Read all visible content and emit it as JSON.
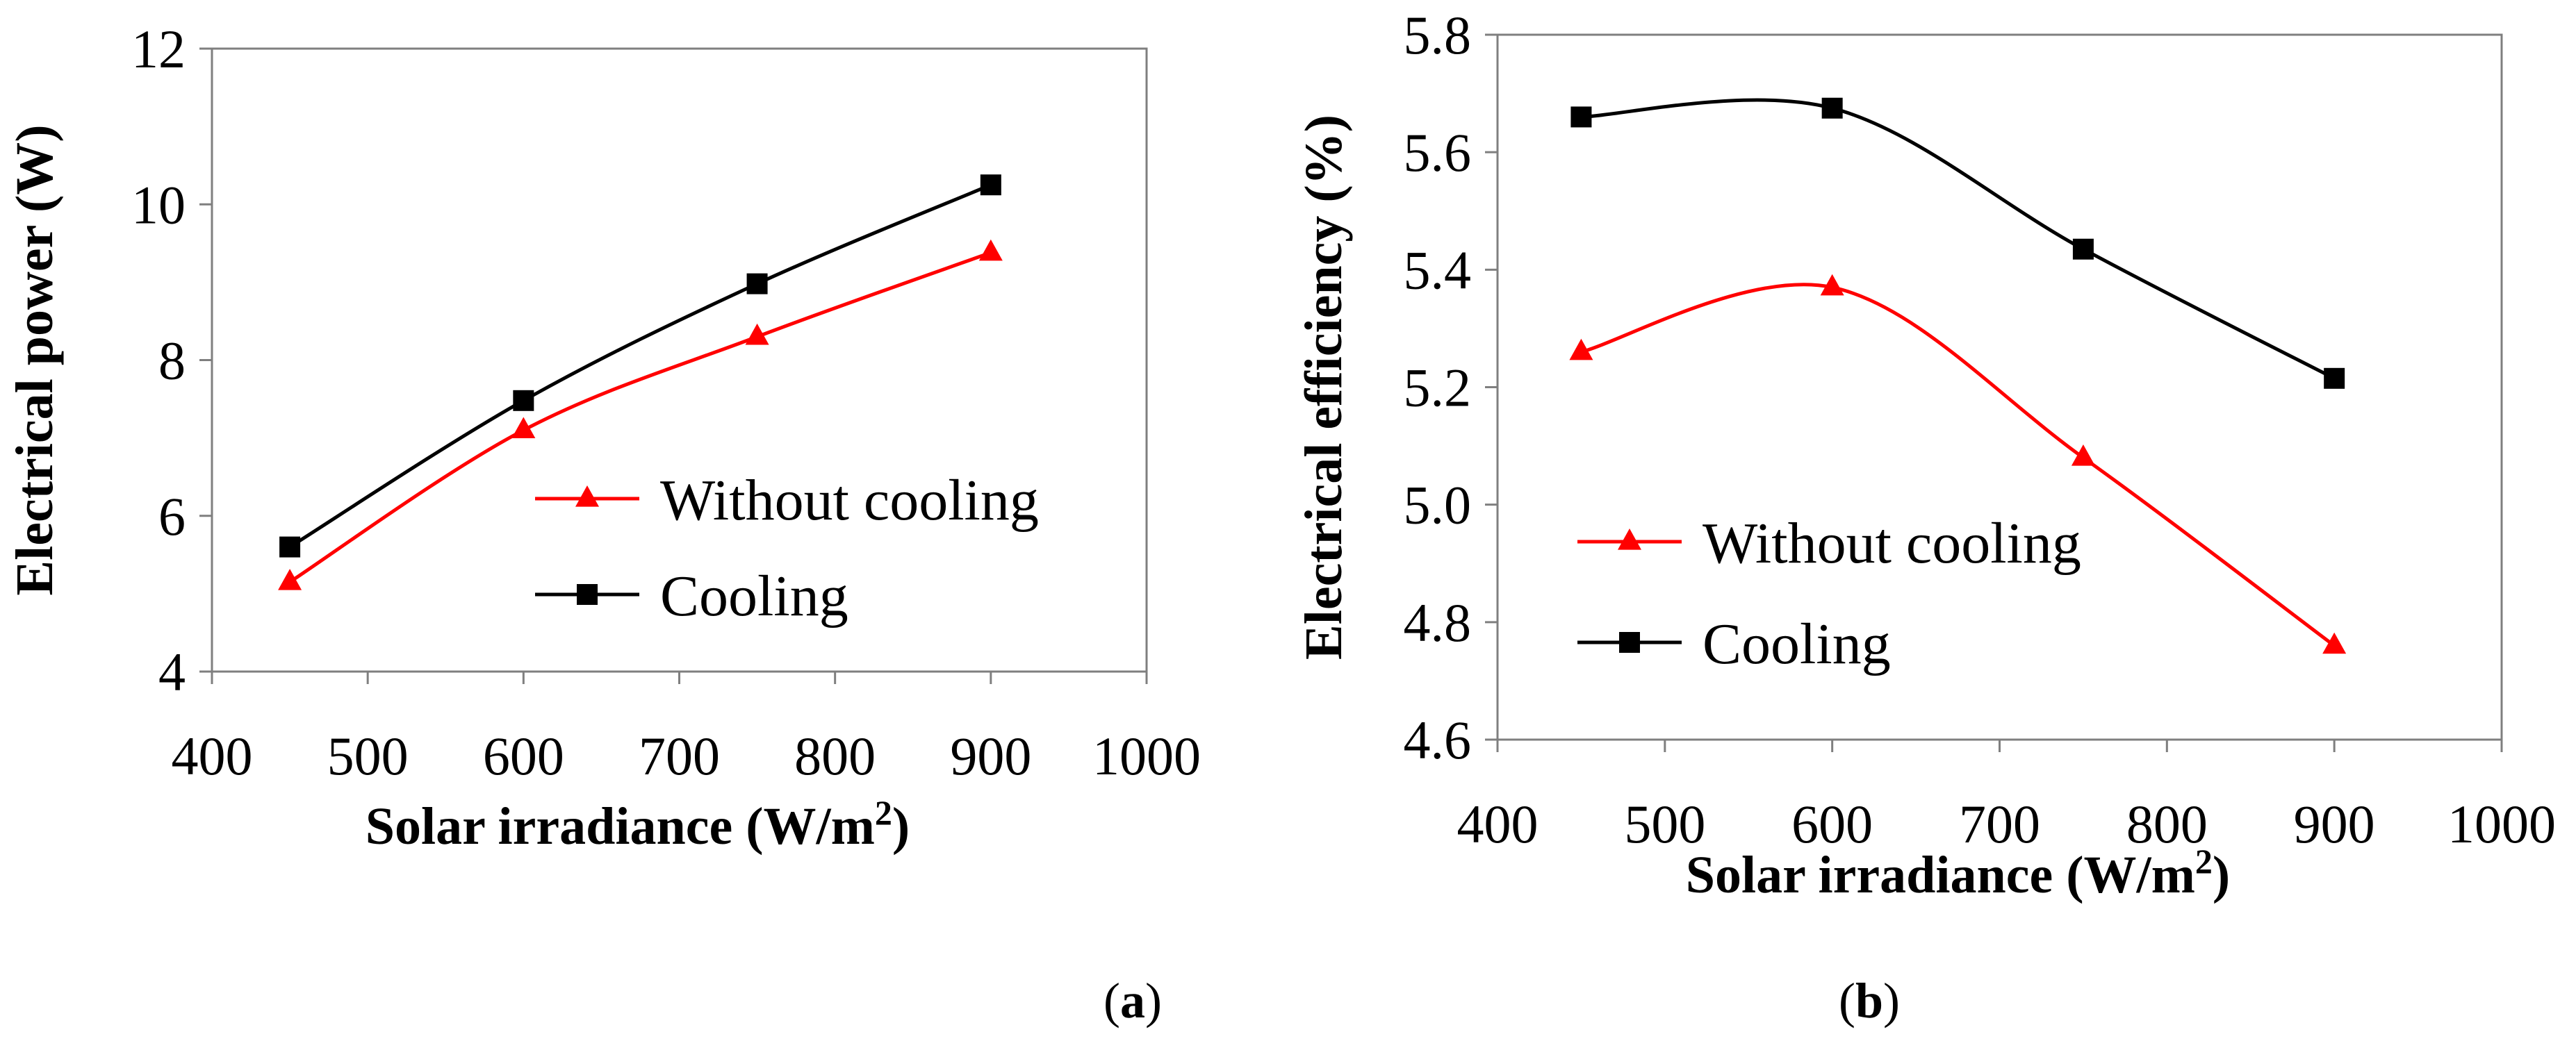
{
  "chart_data": [
    {
      "type": "line",
      "panel_label": "a",
      "title": "",
      "xlabel": "Solar irradiance (W/m",
      "xlabel_sup": "2",
      "xlabel_end": ")",
      "ylabel": "Electrical power (W)",
      "xlim": [
        400,
        1000
      ],
      "ylim": [
        4,
        12
      ],
      "xticks": [
        "400",
        "500",
        "600",
        "700",
        "800",
        "900",
        "1000"
      ],
      "yticks": [
        "4",
        "6",
        "8",
        "10",
        "12"
      ],
      "x": [
        450,
        600,
        750,
        900
      ],
      "series": [
        {
          "name": "Without cooling",
          "color": "#ff0000",
          "marker": "triangle",
          "values": [
            5.15,
            7.1,
            8.3,
            9.38
          ]
        },
        {
          "name": "Cooling",
          "color": "#000000",
          "marker": "square",
          "values": [
            5.6,
            7.48,
            8.98,
            10.25
          ]
        }
      ],
      "legend_position": "right-center"
    },
    {
      "type": "line",
      "panel_label": "b",
      "title": "",
      "xlabel": "Solar irradiance (W/m",
      "xlabel_sup": "2",
      "xlabel_end": ")",
      "ylabel": "Electrical efficiency (%)",
      "xlim": [
        400,
        1000
      ],
      "ylim": [
        4.6,
        5.8
      ],
      "xticks": [
        "400",
        "500",
        "600",
        "700",
        "800",
        "900",
        "1000"
      ],
      "yticks": [
        "4.6",
        "4.8",
        "5.0",
        "5.2",
        "5.4",
        "5.6",
        "5.8"
      ],
      "x": [
        450,
        600,
        750,
        900
      ],
      "series": [
        {
          "name": "Without cooling",
          "color": "#ff0000",
          "marker": "triangle",
          "values": [
            5.26,
            5.37,
            5.08,
            4.76
          ]
        },
        {
          "name": "Cooling",
          "color": "#000000",
          "marker": "square",
          "values": [
            5.66,
            5.675,
            5.435,
            5.215
          ]
        }
      ],
      "legend_position": "bottom-left"
    }
  ]
}
